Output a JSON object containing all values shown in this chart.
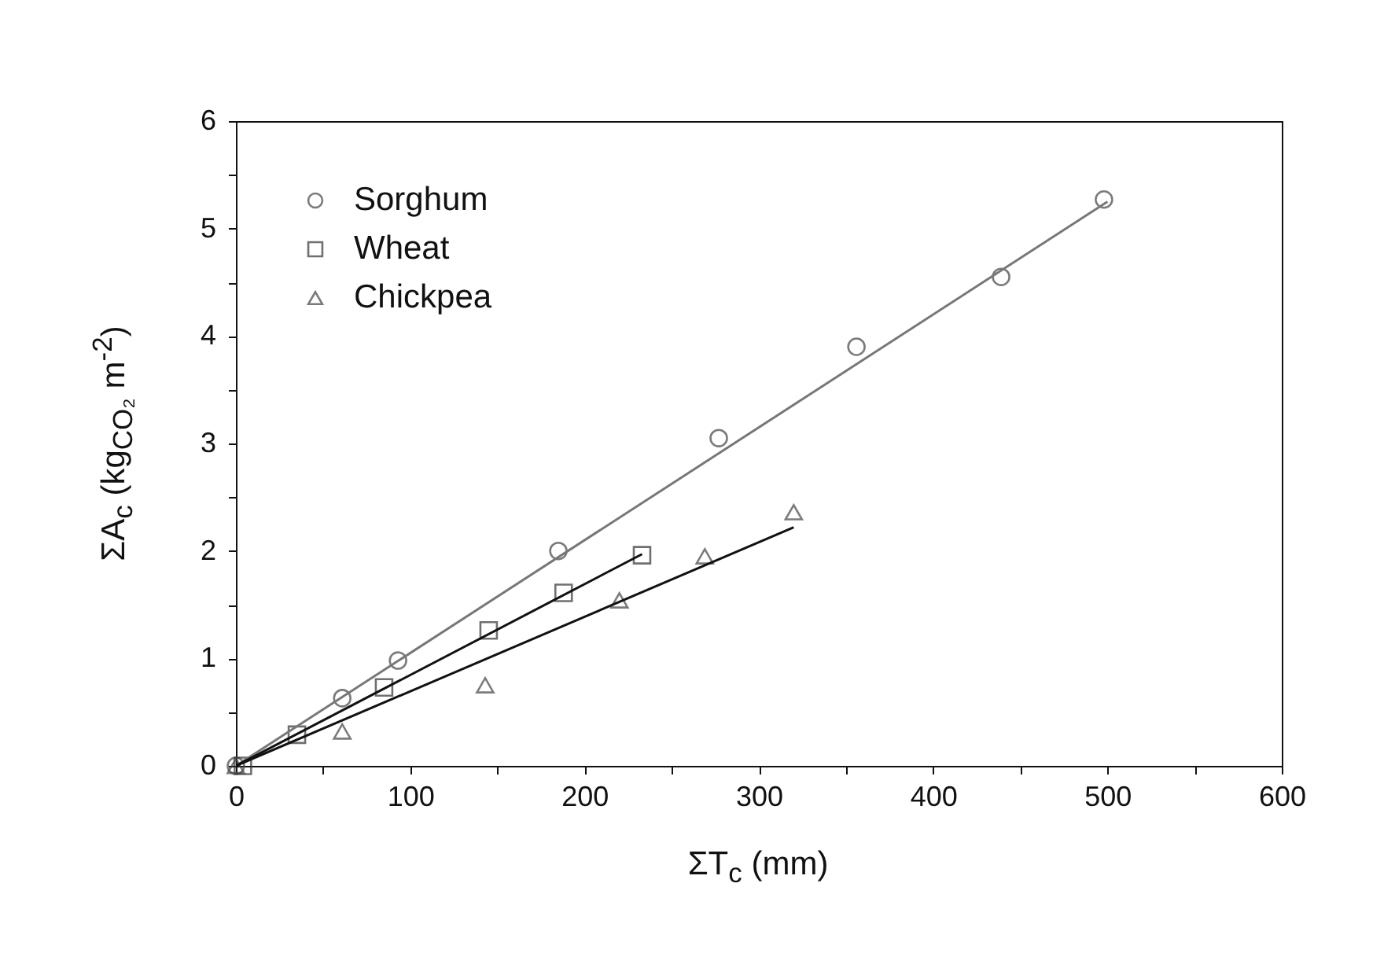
{
  "chart_data": {
    "type": "scatter",
    "xlabel": "ΣT$_{c}$ (mm)",
    "ylabel": "ΣA$_{c}$ (kg$_{CO₂}$ m$^{-2}$)",
    "series": [
      {
        "name": "Sorghum",
        "type": "scatter",
        "marker": "circle",
        "color": "#444444",
        "x": [
          0,
          61,
          93,
          185,
          277,
          356,
          439,
          498
        ],
        "values": [
          0,
          0.63,
          0.98,
          2.0,
          3.05,
          3.9,
          4.55,
          5.27
        ]
      },
      {
        "name": "Wheat",
        "type": "scatter",
        "marker": "square",
        "color": "#333333",
        "x": [
          4,
          35,
          85,
          145,
          188,
          233
        ],
        "values": [
          0,
          0.29,
          0.73,
          1.26,
          1.61,
          1.96
        ]
      },
      {
        "name": "Chickpea",
        "type": "scatter",
        "marker": "triangle",
        "color": "#444444",
        "x": [
          0,
          61,
          143,
          220,
          269,
          320
        ],
        "values": [
          0,
          0.32,
          0.75,
          1.54,
          1.95,
          2.36
        ]
      },
      {
        "type": "line",
        "marker": "none",
        "color": "#777777",
        "x": [
          0,
          500
        ],
        "values": [
          0,
          5.25
        ]
      },
      {
        "type": "line",
        "marker": "none",
        "color": "#111111",
        "x": [
          0,
          233
        ],
        "values": [
          0,
          1.97
        ]
      },
      {
        "type": "line",
        "marker": "none",
        "color": "#111111",
        "x": [
          0,
          320
        ],
        "values": [
          0,
          2.22
        ]
      }
    ],
    "xlim": [
      0,
      600
    ],
    "ylim": [
      0,
      6
    ],
    "xticks": [
      0,
      {
        "value": 50,
        "label": null
      },
      100,
      {
        "value": 150,
        "label": null
      },
      200,
      {
        "value": 250,
        "label": null
      },
      300,
      {
        "value": 350,
        "label": null
      },
      400,
      {
        "value": 450,
        "label": null
      },
      500,
      {
        "value": 550,
        "label": null
      },
      600
    ],
    "yticks": [
      0,
      {
        "value": 0.5,
        "label": null
      },
      1,
      {
        "value": 1.5,
        "label": null
      },
      2,
      {
        "value": 2.5,
        "label": null
      },
      3,
      {
        "value": 3.5,
        "label": null
      },
      4,
      {
        "value": 4.5,
        "label": null
      },
      5,
      {
        "value": 5.5,
        "label": null
      },
      6
    ],
    "grid": false,
    "legend": "top left"
  }
}
